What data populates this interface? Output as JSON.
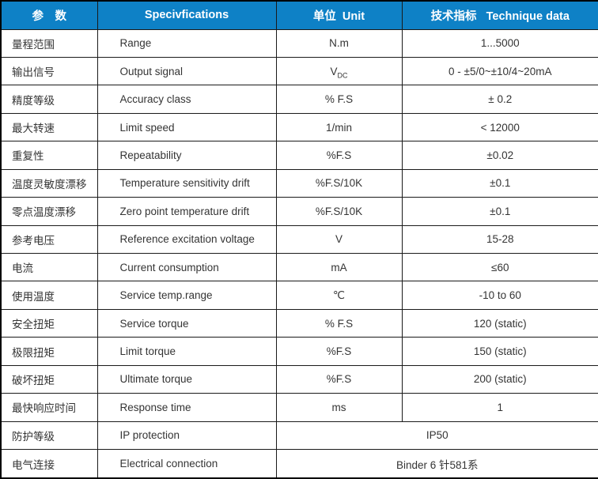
{
  "table": {
    "headers": {
      "param": "参　数",
      "spec": "Specivfications",
      "unit": "单位  Unit",
      "data": "技术指标   Technique data"
    },
    "rows": [
      {
        "param": "量程范围",
        "spec": "Range",
        "unit": "N.m",
        "value": "1...5000"
      },
      {
        "param": "输出信号",
        "spec": "Output signal",
        "unit": "V",
        "unit_sub": "DC",
        "value": "0 - ±5/0~±10/4~20mA"
      },
      {
        "param": "精度等级",
        "spec": "Accuracy class",
        "unit": "% F.S",
        "value": "± 0.2"
      },
      {
        "param": "最大转速",
        "spec": "Limit speed",
        "unit": "1/min",
        "value": "< 12000"
      },
      {
        "param": "重复性",
        "spec": "Repeatability",
        "unit": "%F.S",
        "value": "±0.02"
      },
      {
        "param": "温度灵敏度漂移",
        "spec": "Temperature sensitivity drift",
        "unit": "%F.S/10K",
        "value": "±0.1"
      },
      {
        "param": "零点温度漂移",
        "spec": "Zero point temperature drift",
        "unit": "%F.S/10K",
        "value": "±0.1"
      },
      {
        "param": "参考电压",
        "spec": "Reference excitation voltage",
        "unit": "V",
        "value": "15-28"
      },
      {
        "param": "电流",
        "spec": "Current consumption",
        "unit": "mA",
        "value": "≤60"
      },
      {
        "param": "使用温度",
        "spec": "Service temp.range",
        "unit": "℃",
        "value": "-10 to 60"
      },
      {
        "param": "安全扭矩",
        "spec": "Service torque",
        "unit": "% F.S",
        "value": "120 (static)"
      },
      {
        "param": "极限扭矩",
        "spec": "Limit torque",
        "unit": "%F.S",
        "value": "150 (static)"
      },
      {
        "param": "破坏扭矩",
        "spec": "Ultimate torque",
        "unit": "%F.S",
        "value": "200 (static)"
      },
      {
        "param": "最快响应时间",
        "spec": "Response time",
        "unit": "ms",
        "value": "1"
      },
      {
        "param": "防护等级",
        "spec": "IP protection",
        "merged": true,
        "value": "IP50"
      },
      {
        "param": "电气连接",
        "spec": "Electrical connection",
        "merged": true,
        "value": "Binder 6 针581系"
      }
    ]
  },
  "colors": {
    "header_bg": "#0e81c6",
    "header_text": "#ffffff",
    "body_text": "#343434",
    "border": "#000000"
  }
}
